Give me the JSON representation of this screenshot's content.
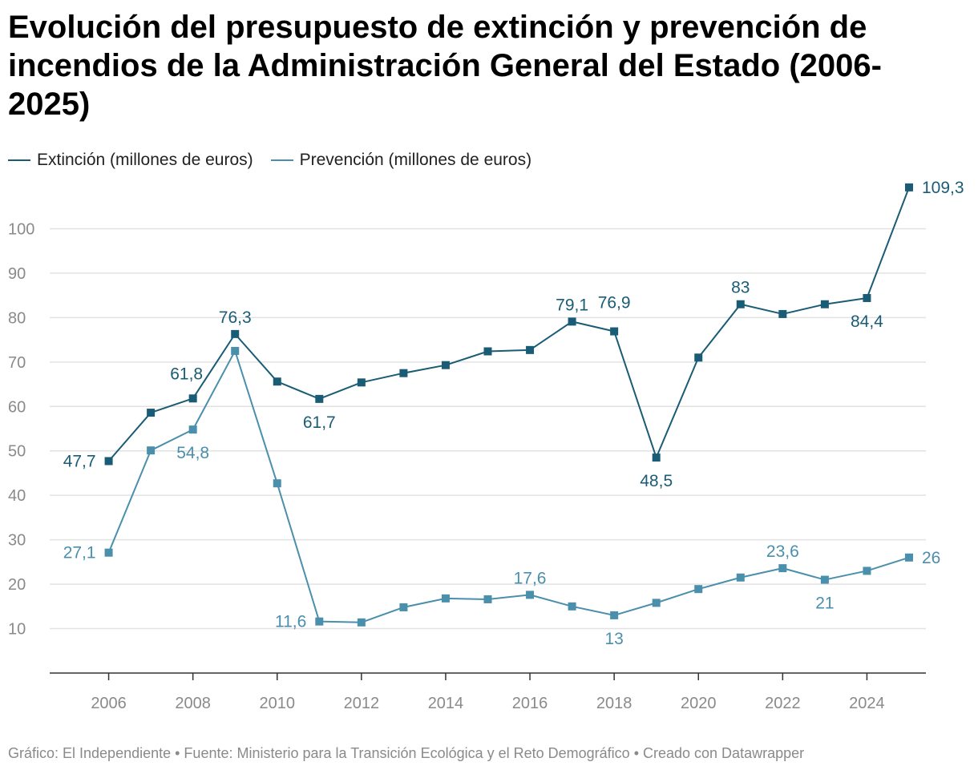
{
  "chart_data": {
    "type": "line",
    "title": "Evolución del presupuesto de extinción y prevención de incendios de la Administración General del Estado (2006-2025)",
    "x": [
      2006,
      2007,
      2008,
      2009,
      2010,
      2011,
      2012,
      2013,
      2014,
      2015,
      2016,
      2017,
      2018,
      2019,
      2020,
      2021,
      2022,
      2023,
      2024,
      2025
    ],
    "x_ticks": [
      2006,
      2008,
      2010,
      2012,
      2014,
      2016,
      2018,
      2020,
      2022,
      2024
    ],
    "y_ticks": [
      10,
      20,
      30,
      40,
      50,
      60,
      70,
      80,
      90,
      100
    ],
    "ylim": [
      0,
      110
    ],
    "xlim": [
      2004.6,
      2025.4
    ],
    "grid": true,
    "legend_position": "top-left",
    "series": [
      {
        "name": "Extinción (millones de euros)",
        "color": "#1a5c75",
        "values": [
          47.7,
          58.6,
          61.8,
          76.3,
          65.6,
          61.7,
          65.4,
          67.5,
          69.3,
          72.4,
          72.7,
          79.1,
          76.9,
          48.5,
          71.0,
          83.0,
          80.8,
          83.0,
          84.4,
          109.3
        ],
        "labels": [
          {
            "x": 2006,
            "text": "47,7",
            "pos": "left"
          },
          {
            "x": 2008,
            "text": "61,8",
            "pos": "above-left"
          },
          {
            "x": 2009,
            "text": "76,3",
            "pos": "above"
          },
          {
            "x": 2011,
            "text": "61,7",
            "pos": "below"
          },
          {
            "x": 2017,
            "text": "79,1",
            "pos": "above"
          },
          {
            "x": 2018,
            "text": "76,9",
            "pos": "above-far"
          },
          {
            "x": 2019,
            "text": "48,5",
            "pos": "below"
          },
          {
            "x": 2021,
            "text": "83",
            "pos": "above"
          },
          {
            "x": 2024,
            "text": "84,4",
            "pos": "below"
          },
          {
            "x": 2025,
            "text": "109,3",
            "pos": "right"
          }
        ]
      },
      {
        "name": "Prevención (millones de euros)",
        "color": "#4a8fab",
        "values": [
          27.1,
          50.1,
          54.8,
          72.5,
          42.7,
          11.6,
          11.4,
          14.8,
          16.8,
          16.6,
          17.6,
          15.0,
          13.0,
          15.8,
          18.9,
          21.5,
          23.6,
          21.0,
          23.0,
          26.0
        ],
        "labels": [
          {
            "x": 2006,
            "text": "27,1",
            "pos": "left"
          },
          {
            "x": 2008,
            "text": "54,8",
            "pos": "below"
          },
          {
            "x": 2011,
            "text": "11,6",
            "pos": "left"
          },
          {
            "x": 2016,
            "text": "17,6",
            "pos": "above"
          },
          {
            "x": 2018,
            "text": "13",
            "pos": "below"
          },
          {
            "x": 2022,
            "text": "23,6",
            "pos": "above"
          },
          {
            "x": 2023,
            "text": "21",
            "pos": "below"
          },
          {
            "x": 2025,
            "text": "26",
            "pos": "right"
          }
        ]
      }
    ]
  },
  "footer": "Gráfico: El Independiente • Fuente: Ministerio para la Transición Ecológica y el Reto Demográfico • Creado con Datawrapper"
}
